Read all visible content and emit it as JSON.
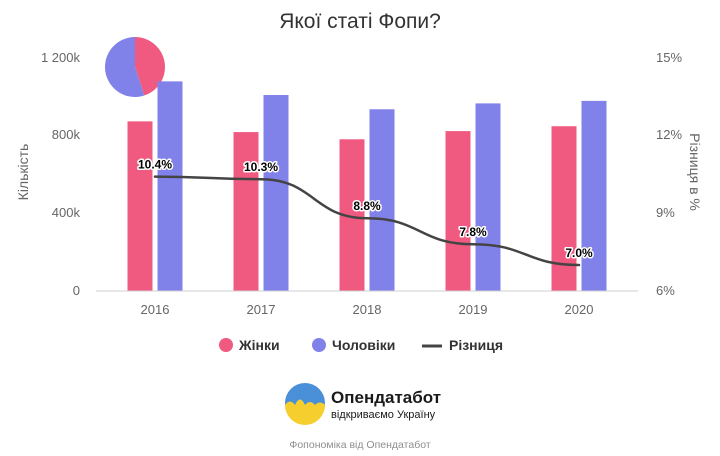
{
  "colors": {
    "women": "#f05a80",
    "men": "#8181ea",
    "diff": "#444444",
    "logo_blue": "#4a90d9",
    "logo_yellow": "#f6cf2f"
  },
  "chart_data": {
    "type": "bar",
    "title": "Якої статі Фопи?",
    "categories": [
      "2016",
      "2017",
      "2018",
      "2019",
      "2020"
    ],
    "series": [
      {
        "name": "Жінки",
        "type": "bar",
        "axis": "left",
        "color": "#f05a80",
        "values": [
          870000,
          815000,
          778000,
          820000,
          845000
        ]
      },
      {
        "name": "Чоловіки",
        "type": "bar",
        "axis": "left",
        "color": "#8181ea",
        "values": [
          1075000,
          1005000,
          932000,
          962000,
          975000
        ]
      },
      {
        "name": "Різниця",
        "type": "line",
        "axis": "right",
        "color": "#444444",
        "values": [
          10.4,
          10.3,
          8.8,
          7.8,
          7.0
        ]
      }
    ],
    "data_labels": [
      "10.4%",
      "10.3%",
      "8.8%",
      "7.8%",
      "7.0%"
    ],
    "ylabel": "Кількість",
    "ylim": [
      0,
      1200000
    ],
    "y_ticks": [
      "0",
      "400k",
      "800k",
      "1 200k"
    ],
    "y2label": "Різниця в %",
    "y2lim": [
      6,
      15
    ],
    "y2_ticks": [
      "6%",
      "9%",
      "12%",
      "15%"
    ],
    "legend": [
      "Жінки",
      "Чоловіки",
      "Різниця"
    ],
    "legend_position": "bottom",
    "grid": false,
    "inset_pie": {
      "women_share": 0.45,
      "men_share": 0.55
    }
  },
  "branding": {
    "logo_name": "Опендатабот",
    "logo_tagline": "відкриваємо Україну",
    "footer": "Фопономіка від Опендатабот"
  }
}
